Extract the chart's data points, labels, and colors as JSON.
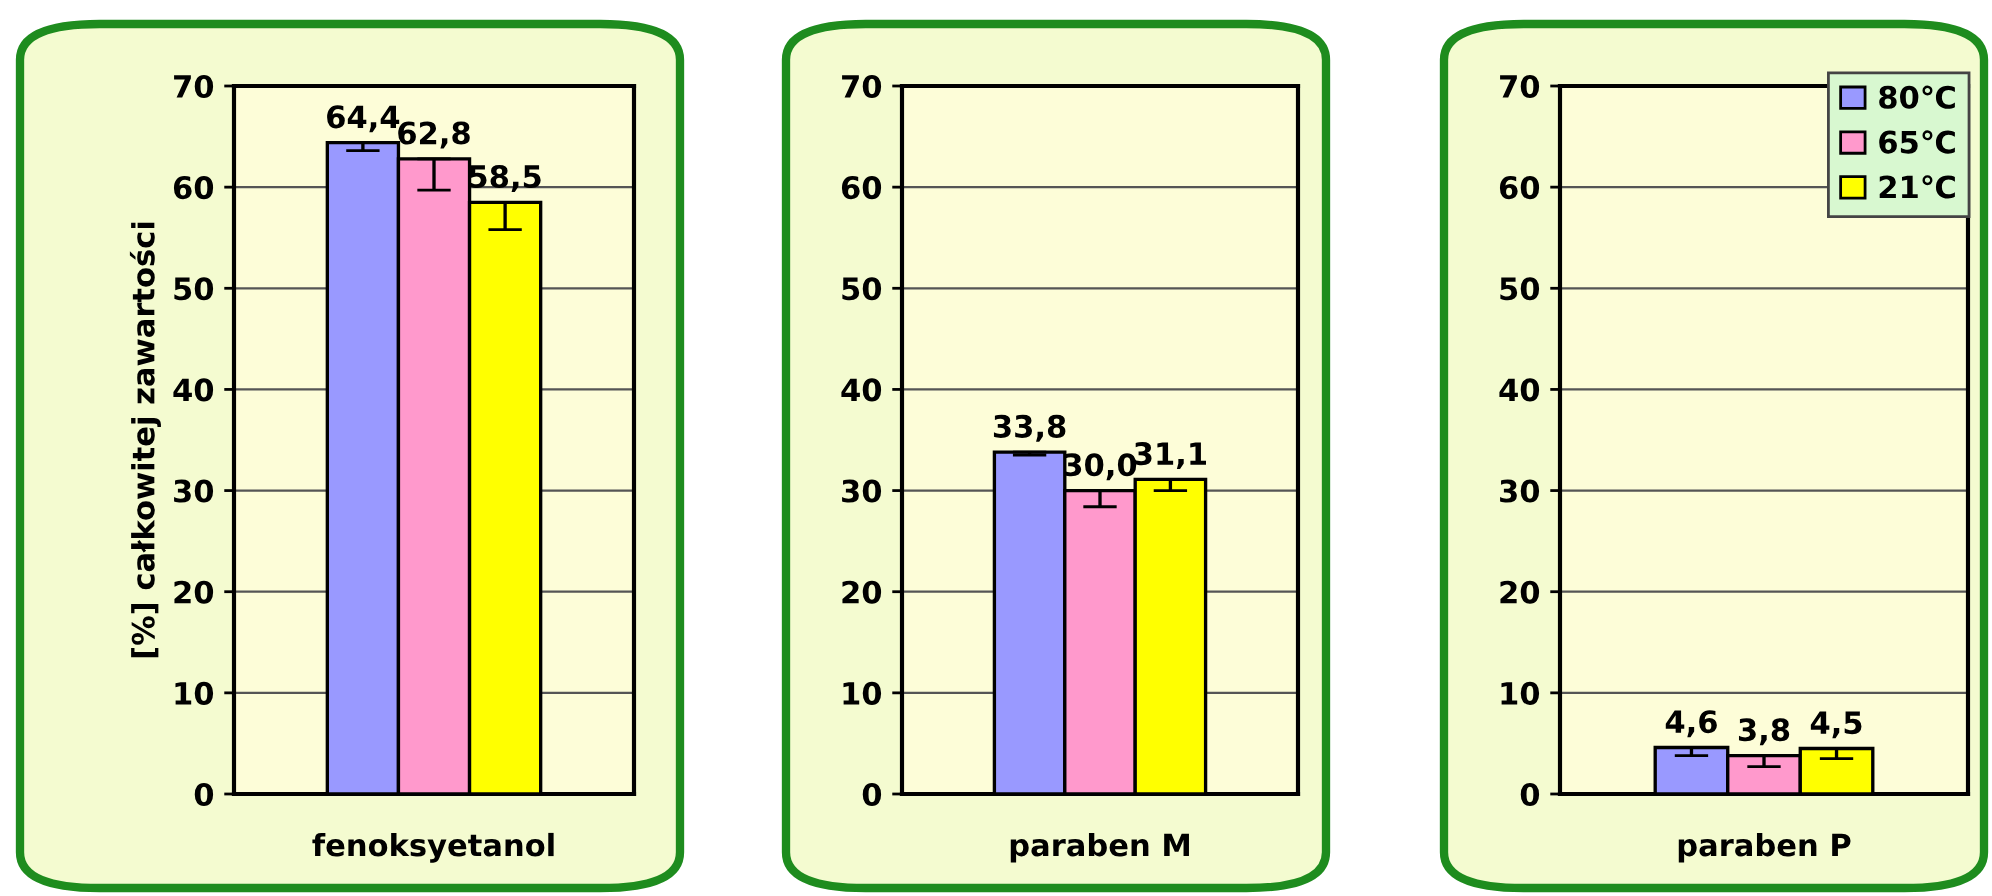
{
  "chart_data": [
    {
      "type": "bar",
      "ylabel": "[%] całkowitej zawartości",
      "categories": [
        "fenoksyetanol"
      ],
      "ylim": [
        0,
        70
      ],
      "yticks": [
        0,
        10,
        20,
        30,
        40,
        50,
        60,
        70
      ],
      "grid": "y",
      "legend": false,
      "series": [
        {
          "color": "#9999ff",
          "values": [
            64.4
          ],
          "value_labels": [
            "64,4"
          ],
          "errors": [
            [
              63.6,
              64.4
            ]
          ]
        },
        {
          "color": "#ff99cc",
          "values": [
            62.8
          ],
          "value_labels": [
            "62,8"
          ],
          "errors": [
            [
              59.7,
              62.8
            ]
          ]
        },
        {
          "color": "#ffff00",
          "values": [
            58.5
          ],
          "value_labels": [
            "58,5"
          ],
          "errors": [
            [
              55.8,
              58.5
            ]
          ]
        }
      ]
    },
    {
      "type": "bar",
      "categories": [
        "paraben M"
      ],
      "ylim": [
        0,
        70
      ],
      "yticks": [
        0,
        10,
        20,
        30,
        40,
        50,
        60,
        70
      ],
      "grid": "y",
      "legend": false,
      "series": [
        {
          "color": "#9999ff",
          "values": [
            33.8
          ],
          "value_labels": [
            "33,8"
          ],
          "errors": [
            [
              33.5,
              33.8
            ]
          ]
        },
        {
          "color": "#ff99cc",
          "values": [
            30.0
          ],
          "value_labels": [
            "30,0"
          ],
          "errors": [
            [
              28.4,
              30.0
            ]
          ]
        },
        {
          "color": "#ffff00",
          "values": [
            31.1
          ],
          "value_labels": [
            "31,1"
          ],
          "errors": [
            [
              30.0,
              31.1
            ]
          ]
        }
      ]
    },
    {
      "type": "bar",
      "categories": [
        "paraben P"
      ],
      "ylim": [
        0,
        70
      ],
      "yticks": [
        0,
        10,
        20,
        30,
        40,
        50,
        60,
        70
      ],
      "grid": "y",
      "legend": "top right",
      "series": [
        {
          "name": "80℃",
          "color": "#9999ff",
          "values": [
            4.6
          ],
          "value_labels": [
            "4,6"
          ],
          "errors": [
            [
              3.8,
              4.6
            ]
          ]
        },
        {
          "name": "65℃",
          "color": "#ff99cc",
          "values": [
            3.8
          ],
          "value_labels": [
            "3,8"
          ],
          "errors": [
            [
              2.7,
              3.8
            ]
          ]
        },
        {
          "name": "21℃",
          "color": "#ffff00",
          "values": [
            4.5
          ],
          "value_labels": [
            "4,5"
          ],
          "errors": [
            [
              3.5,
              4.5
            ]
          ]
        }
      ]
    }
  ]
}
